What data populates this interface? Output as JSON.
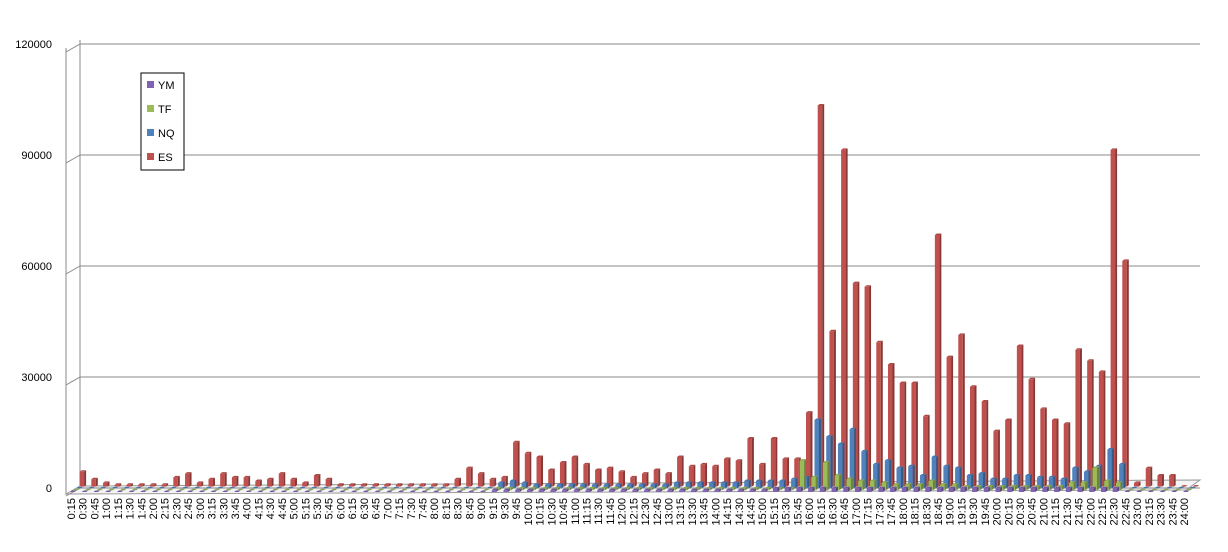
{
  "chart_data": {
    "type": "bar",
    "three_d": true,
    "categories": [
      "0:15",
      "0:30",
      "0:45",
      "1:00",
      "1:15",
      "1:30",
      "1:45",
      "2:00",
      "2:15",
      "2:30",
      "2:45",
      "3:00",
      "3:15",
      "3:30",
      "3:45",
      "4:00",
      "4:15",
      "4:30",
      "4:45",
      "5:00",
      "5:15",
      "5:30",
      "5:45",
      "6:00",
      "6:15",
      "6:30",
      "6:45",
      "7:00",
      "7:15",
      "7:30",
      "7:45",
      "8:00",
      "8:15",
      "8:30",
      "8:45",
      "9:00",
      "9:15",
      "9:30",
      "9:45",
      "10:00",
      "10:15",
      "10:30",
      "10:45",
      "11:00",
      "11:15",
      "11:30",
      "11:45",
      "12:00",
      "12:15",
      "12:30",
      "12:45",
      "13:00",
      "13:15",
      "13:30",
      "13:45",
      "14:00",
      "14:15",
      "14:30",
      "14:45",
      "15:00",
      "15:15",
      "15:30",
      "15:45",
      "16:00",
      "16:15",
      "16:30",
      "16:45",
      "17:00",
      "17:15",
      "17:30",
      "17:45",
      "18:00",
      "18:15",
      "18:30",
      "18:45",
      "19:00",
      "19:15",
      "19:30",
      "19:45",
      "20:00",
      "20:15",
      "20:30",
      "20:45",
      "21:00",
      "21:15",
      "21:30",
      "21:45",
      "22:00",
      "22:15",
      "22:30",
      "22:45",
      "23:00",
      "23:15",
      "23:30",
      "23:45",
      "24:00"
    ],
    "series": [
      {
        "name": "YM",
        "color": "#7f63b2",
        "values": [
          0,
          0,
          0,
          0,
          0,
          0,
          0,
          0,
          0,
          0,
          0,
          0,
          0,
          0,
          0,
          0,
          0,
          0,
          0,
          0,
          0,
          0,
          0,
          0,
          0,
          0,
          0,
          0,
          0,
          0,
          0,
          0,
          0,
          0,
          0,
          0,
          500,
          500,
          500,
          500,
          500,
          500,
          500,
          500,
          500,
          500,
          500,
          500,
          500,
          500,
          500,
          500,
          500,
          500,
          500,
          500,
          500,
          500,
          500,
          500,
          1000,
          1000,
          1000,
          1000,
          1000,
          1000,
          1000,
          1000,
          1000,
          1000,
          1000,
          1000,
          1000,
          1000,
          1000,
          1000,
          1000,
          1000,
          1000,
          1000,
          1000,
          1000,
          1000,
          1000,
          1000,
          1000,
          1000,
          1000,
          1000,
          1000,
          0,
          0,
          0,
          0,
          0,
          0
        ]
      },
      {
        "name": "TF",
        "color": "#9bbb59",
        "values": [
          0,
          0,
          0,
          0,
          0,
          0,
          0,
          0,
          0,
          0,
          0,
          0,
          0,
          0,
          0,
          0,
          0,
          0,
          0,
          0,
          0,
          0,
          0,
          0,
          0,
          0,
          0,
          0,
          0,
          0,
          0,
          0,
          0,
          0,
          0,
          0,
          500,
          500,
          500,
          500,
          500,
          500,
          500,
          500,
          500,
          500,
          500,
          500,
          500,
          500,
          500,
          500,
          500,
          500,
          500,
          500,
          500,
          500,
          500,
          500,
          500,
          500,
          8000,
          3500,
          7500,
          4000,
          3000,
          2500,
          2500,
          2000,
          1500,
          1500,
          1500,
          2500,
          1500,
          1500,
          1000,
          1000,
          1000,
          1000,
          1000,
          1000,
          1000,
          1000,
          1000,
          2000,
          2000,
          6000,
          2500,
          2000,
          0,
          0,
          0,
          0,
          0,
          0
        ]
      },
      {
        "name": "NQ",
        "color": "#4f81bd",
        "values": [
          0,
          0,
          0,
          0,
          0,
          0,
          0,
          0,
          0,
          0,
          0,
          0,
          0,
          0,
          0,
          0,
          0,
          0,
          0,
          0,
          0,
          0,
          0,
          0,
          0,
          0,
          0,
          0,
          0,
          0,
          0,
          0,
          0,
          0,
          0,
          0,
          1500,
          2000,
          1500,
          1000,
          1000,
          1000,
          1000,
          1000,
          1000,
          1000,
          1000,
          1000,
          1000,
          1000,
          1000,
          1500,
          1500,
          1500,
          1500,
          1500,
          1500,
          2000,
          2000,
          2000,
          2000,
          2500,
          3000,
          18500,
          14000,
          12000,
          16000,
          10000,
          6500,
          7500,
          5500,
          6000,
          3500,
          8500,
          6000,
          5500,
          3500,
          4000,
          2500,
          2500,
          3500,
          3500,
          3000,
          3000,
          2500,
          5500,
          4500,
          6000,
          10500,
          6500,
          0,
          0,
          0,
          0,
          0,
          0
        ]
      },
      {
        "name": "ES",
        "color": "#c0504d",
        "values": [
          4000,
          2000,
          1000,
          500,
          500,
          500,
          500,
          500,
          2500,
          3500,
          1000,
          2000,
          3500,
          2500,
          2500,
          1500,
          2000,
          3500,
          2000,
          1000,
          3000,
          2000,
          500,
          500,
          500,
          500,
          500,
          500,
          500,
          500,
          500,
          500,
          2000,
          5000,
          3500,
          2000,
          2500,
          12000,
          9000,
          8000,
          4500,
          6500,
          8000,
          6000,
          4500,
          5000,
          4000,
          2500,
          3500,
          4500,
          3500,
          8000,
          5500,
          6000,
          5500,
          7500,
          7000,
          13000,
          6000,
          13000,
          7500,
          7500,
          20000,
          103000,
          42000,
          91000,
          55000,
          54000,
          39000,
          33000,
          28000,
          28000,
          19000,
          68000,
          35000,
          41000,
          27000,
          23000,
          15000,
          18000,
          38000,
          29000,
          21000,
          18000,
          17000,
          37000,
          34000,
          31000,
          91000,
          61000,
          1000,
          5000,
          3000,
          3000,
          0,
          0
        ]
      }
    ],
    "ylim": [
      0,
      120000
    ],
    "yticks": [
      0,
      30000,
      60000,
      90000,
      120000
    ],
    "grid": true,
    "legend": "top-left"
  }
}
